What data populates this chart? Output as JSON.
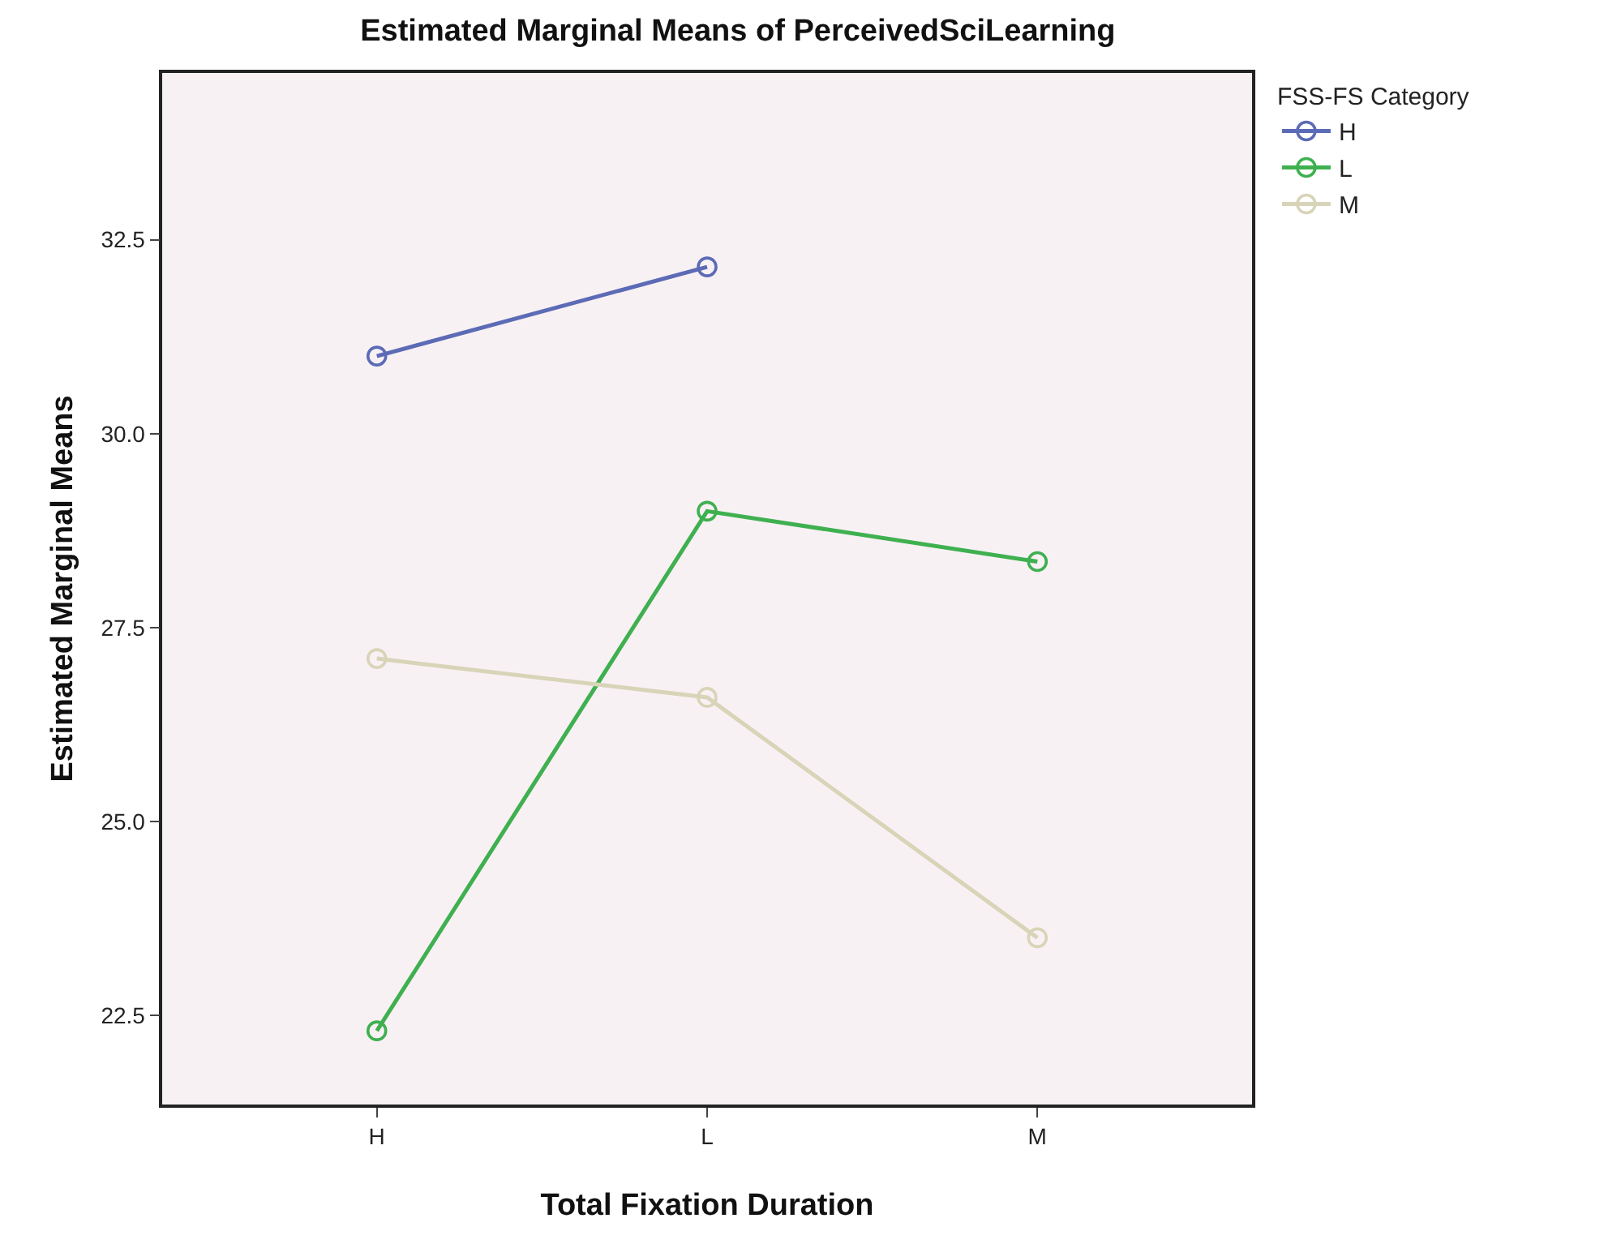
{
  "chart_data": {
    "type": "line",
    "title": "Estimated Marginal Means of PerceivedSciLearning",
    "xlabel": "Total Fixation Duration",
    "ylabel": "Estimated Marginal Means",
    "legend_title": "FSS-FS Category",
    "categories": [
      "H",
      "L",
      "M"
    ],
    "series": [
      {
        "name": "H",
        "color": "#5c6bb5",
        "values": [
          31.0,
          32.15,
          null
        ]
      },
      {
        "name": "L",
        "color": "#3fb050",
        "values": [
          22.3,
          29.0,
          28.35
        ]
      },
      {
        "name": "M",
        "color": "#d8d4b8",
        "values": [
          27.1,
          26.6,
          23.5
        ]
      }
    ],
    "ylim": [
      21.35,
      34.65
    ],
    "yticks": [
      {
        "value": 22.5,
        "label": "22.5"
      },
      {
        "value": 25,
        "label": "25.0"
      },
      {
        "value": 27.5,
        "label": "27.5"
      },
      {
        "value": 30,
        "label": "30.0"
      },
      {
        "value": 32.5,
        "label": "32.5"
      }
    ],
    "marker": "circle",
    "line_style": "solid",
    "grid": false,
    "legend": "top right"
  }
}
